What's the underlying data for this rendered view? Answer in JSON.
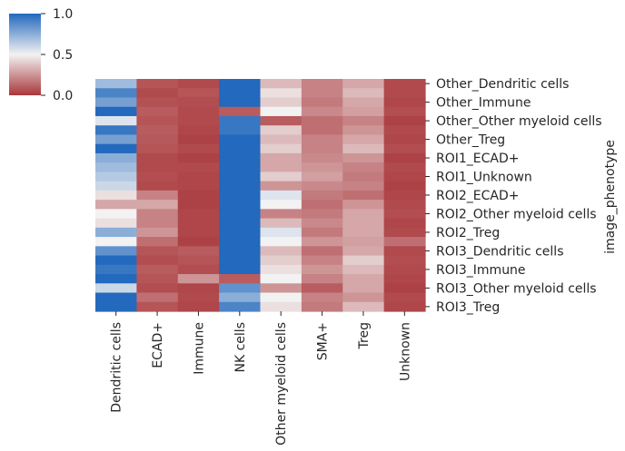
{
  "chart_data": {
    "type": "heatmap",
    "title": "",
    "xlabel": "",
    "ylabel": "image_phenotype",
    "columns": [
      "Dendritic cells",
      "ECAD+",
      "Immune",
      "NK cells",
      "Other myeloid cells",
      "SMA+",
      "Treg",
      "Unknown"
    ],
    "row_tick_labels": [
      "Other_Dendritic cells",
      "Other_Immune",
      "Other_Other myeloid cells",
      "Other_Treg",
      "ROI1_ECAD+",
      "ROI1_Unknown",
      "ROI2_ECAD+",
      "ROI2_Other myeloid cells",
      "ROI2_Treg",
      "ROI3_Dendritic cells",
      "ROI3_Immune",
      "ROI3_Other myeloid cells",
      "ROI3_Treg"
    ],
    "colorbar": {
      "min": 0.0,
      "max": 1.0,
      "ticks": [
        "1.0",
        "0.5",
        "0.0"
      ],
      "colormap": "vlag_r (red-white-blue)"
    },
    "values": [
      [
        0.7,
        0.08,
        0.05,
        1.0,
        0.35,
        0.2,
        0.3,
        0.05
      ],
      [
        0.9,
        0.05,
        0.08,
        1.0,
        0.45,
        0.2,
        0.35,
        0.05
      ],
      [
        0.8,
        0.07,
        0.06,
        1.0,
        0.4,
        0.18,
        0.3,
        0.04
      ],
      [
        1.0,
        0.1,
        0.05,
        0.1,
        0.5,
        0.22,
        0.28,
        0.06
      ],
      [
        0.55,
        0.08,
        0.05,
        0.95,
        0.1,
        0.15,
        0.2,
        0.03
      ],
      [
        0.95,
        0.1,
        0.04,
        0.95,
        0.4,
        0.15,
        0.25,
        0.05
      ],
      [
        0.8,
        0.09,
        0.03,
        1.0,
        0.35,
        0.2,
        0.3,
        0.04
      ],
      [
        1.0,
        0.08,
        0.05,
        1.0,
        0.4,
        0.2,
        0.35,
        0.06
      ],
      [
        0.75,
        0.05,
        0.03,
        1.0,
        0.3,
        0.22,
        0.25,
        0.03
      ],
      [
        0.7,
        0.05,
        0.05,
        1.0,
        0.3,
        0.25,
        0.2,
        0.05
      ],
      [
        0.65,
        0.06,
        0.04,
        1.0,
        0.4,
        0.28,
        0.18,
        0.04
      ],
      [
        0.6,
        0.05,
        0.04,
        1.0,
        0.25,
        0.22,
        0.2,
        0.03
      ],
      [
        0.45,
        0.2,
        0.03,
        1.0,
        0.55,
        0.18,
        0.15,
        0.04
      ],
      [
        0.3,
        0.3,
        0.03,
        1.0,
        0.5,
        0.15,
        0.25,
        0.05
      ],
      [
        0.5,
        0.2,
        0.04,
        1.0,
        0.2,
        0.18,
        0.3,
        0.06
      ],
      [
        0.45,
        0.2,
        0.04,
        1.0,
        0.35,
        0.22,
        0.3,
        0.04
      ],
      [
        0.75,
        0.25,
        0.04,
        1.0,
        0.55,
        0.18,
        0.3,
        0.05
      ],
      [
        0.5,
        0.15,
        0.03,
        1.0,
        0.5,
        0.25,
        0.28,
        0.15
      ],
      [
        0.85,
        0.08,
        0.1,
        1.0,
        0.35,
        0.15,
        0.3,
        0.05
      ],
      [
        1.0,
        0.06,
        0.08,
        1.0,
        0.4,
        0.2,
        0.4,
        0.06
      ],
      [
        0.95,
        0.1,
        0.06,
        1.0,
        0.45,
        0.25,
        0.35,
        0.05
      ],
      [
        1.0,
        0.08,
        0.25,
        0.1,
        0.5,
        0.2,
        0.3,
        0.04
      ],
      [
        0.6,
        0.06,
        0.04,
        0.85,
        0.25,
        0.1,
        0.3,
        0.03
      ],
      [
        1.0,
        0.15,
        0.05,
        0.75,
        0.5,
        0.2,
        0.25,
        0.05
      ],
      [
        1.0,
        0.08,
        0.04,
        0.9,
        0.45,
        0.18,
        0.35,
        0.04
      ]
    ]
  }
}
